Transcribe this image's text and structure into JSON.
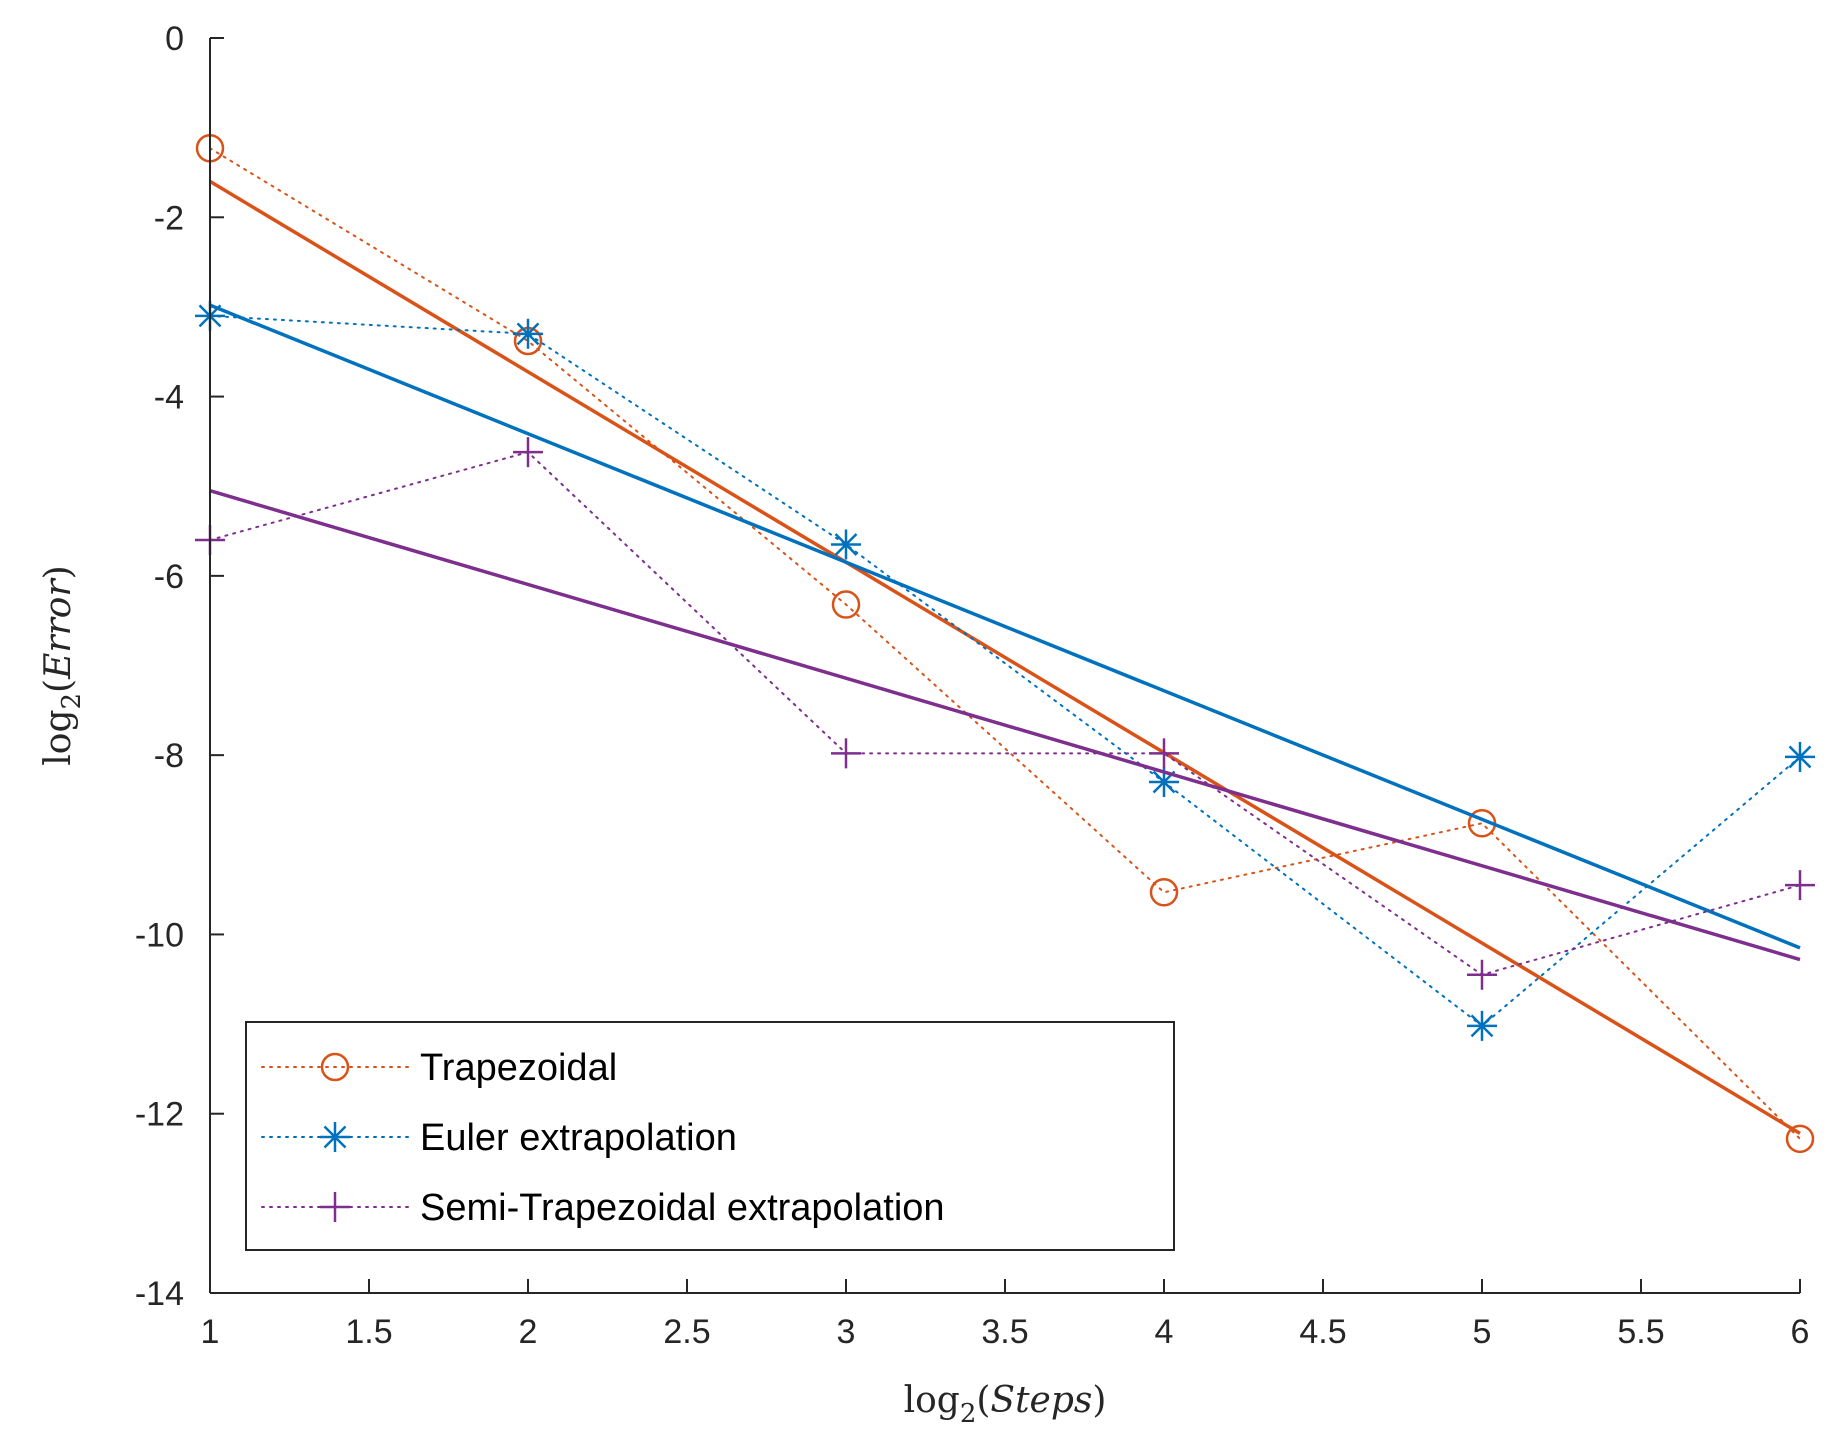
{
  "chart_data": {
    "type": "line",
    "title": "",
    "xlabel": {
      "fn": "log",
      "sub": "2",
      "arg": "Steps"
    },
    "ylabel": {
      "fn": "log",
      "sub": "2",
      "arg": "Error"
    },
    "xlim": [
      1,
      6
    ],
    "ylim": [
      -14,
      0
    ],
    "xticks": [
      1,
      1.5,
      2,
      2.5,
      3,
      3.5,
      4,
      4.5,
      5,
      5.5,
      6
    ],
    "xtick_labels": [
      "1",
      "1.5",
      "2",
      "2.5",
      "3",
      "3.5",
      "4",
      "4.5",
      "5",
      "5.5",
      "6"
    ],
    "yticks": [
      0,
      -2,
      -4,
      -6,
      -8,
      -10,
      -12,
      -14
    ],
    "ytick_labels": [
      "0",
      "-2",
      "-4",
      "-6",
      "-8",
      "-10",
      "-12",
      "-14"
    ],
    "grid": false,
    "legend_position": "bottom-left",
    "x": [
      1,
      2,
      3,
      4,
      5,
      6
    ],
    "series": [
      {
        "name": "Trapezoidal",
        "color": "#D95319",
        "marker": "circle",
        "values": [
          -1.23,
          -3.38,
          -6.32,
          -9.53,
          -8.76,
          -12.28
        ],
        "fit": [
          -1.6,
          -12.22
        ]
      },
      {
        "name": "Euler extrapolation",
        "color": "#0072BD",
        "marker": "asterisk",
        "values": [
          -3.1,
          -3.3,
          -5.65,
          -8.3,
          -11.02,
          -8.02
        ],
        "fit": [
          -2.98,
          -10.15
        ]
      },
      {
        "name": "Semi-Trapezoidal extrapolation",
        "color": "#7E2F8E",
        "marker": "plus",
        "values": [
          -5.6,
          -4.62,
          -7.98,
          -7.98,
          -10.45,
          -9.45
        ],
        "fit": [
          -5.05,
          -10.28
        ]
      }
    ]
  }
}
